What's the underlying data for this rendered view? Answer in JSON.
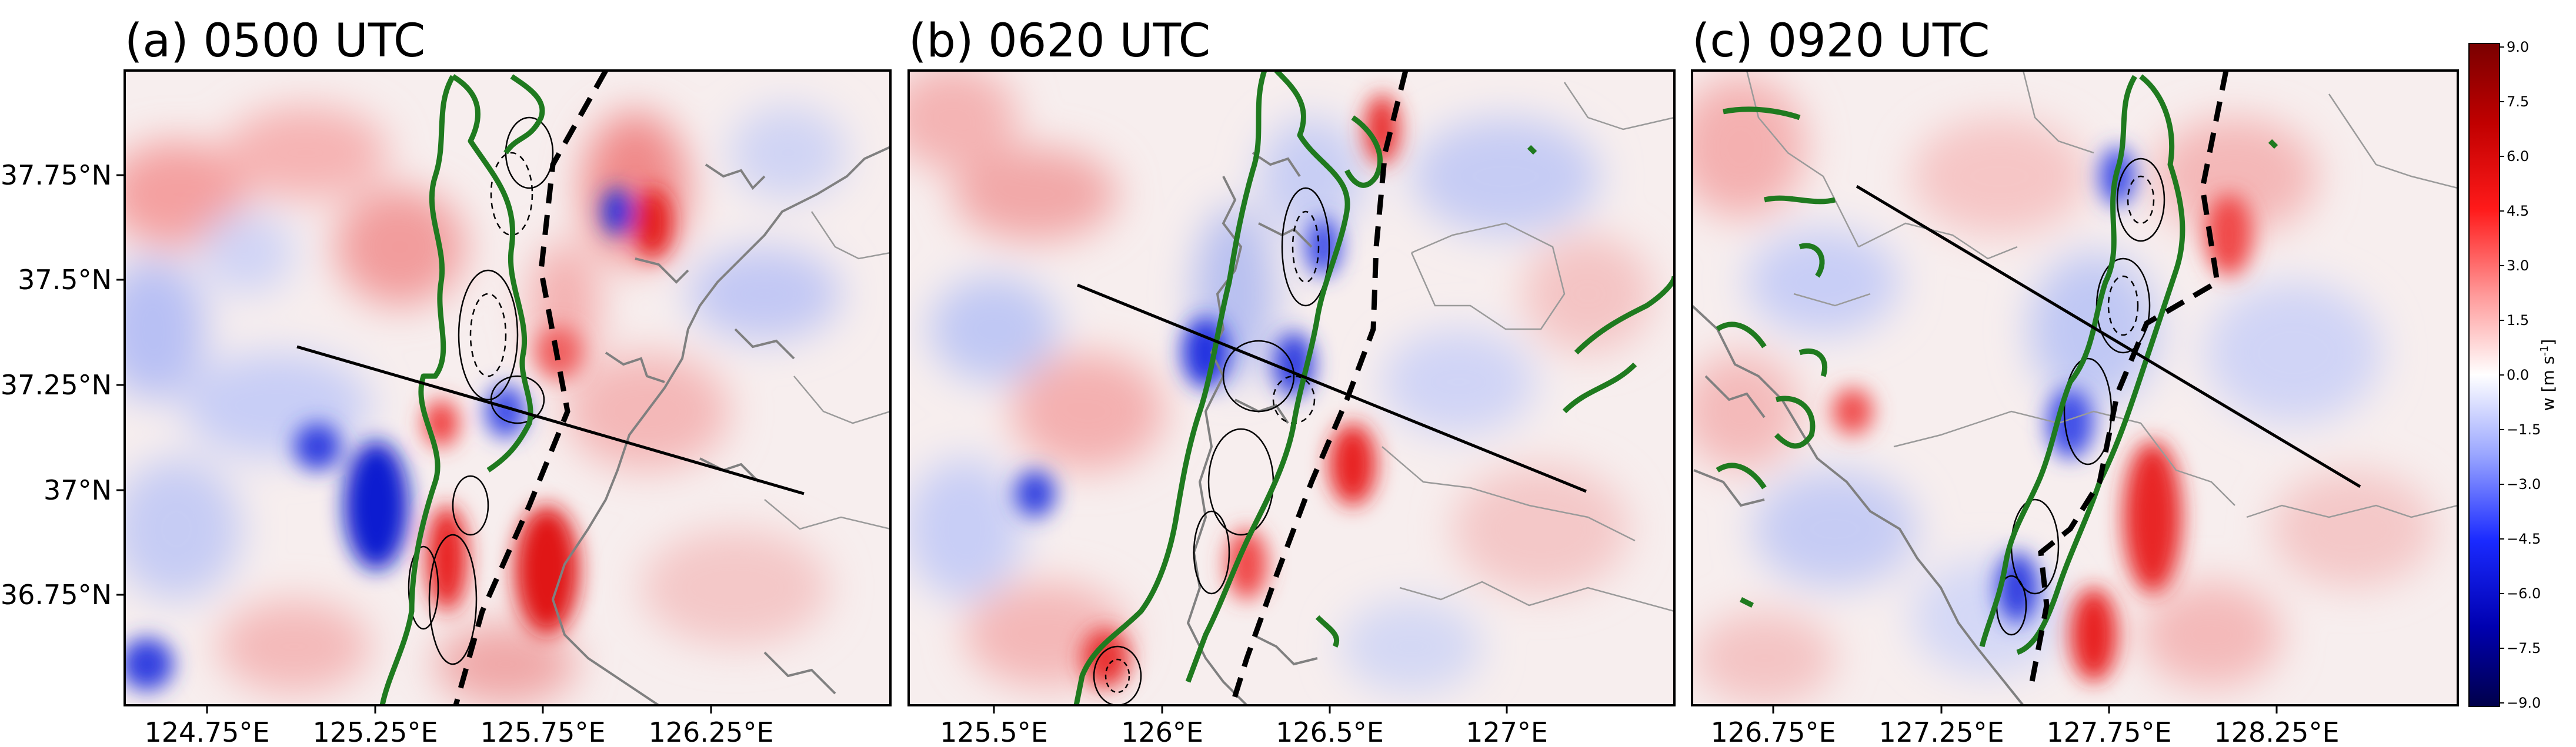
{
  "panels": [
    {
      "title": "(a) 0500 UTC",
      "xticks": [
        "124.75°E",
        "125.25°E",
        "125.75°E",
        "126.25°E"
      ],
      "yticks": [
        "37.75°N",
        "37.5°N",
        "37.25°N",
        "37°N",
        "36.75°N"
      ]
    },
    {
      "title": "(b) 0620 UTC",
      "xticks": [
        "125.5°E",
        "126°E",
        "126.5°E",
        "127°E"
      ]
    },
    {
      "title": "(c) 0920 UTC",
      "xticks": [
        "126.75°E",
        "127.25°E",
        "127.75°E",
        "128.25°E"
      ]
    }
  ],
  "colorbar": {
    "label": "w [m s",
    "label_exp": "-1",
    "label_end": "]",
    "ticks": [
      "9.0",
      "7.5",
      "6.0",
      "4.5",
      "3.0",
      "1.5",
      "0.0",
      "−1.5",
      "−3.0",
      "−4.5",
      "−6.0",
      "−7.5",
      "−9.0"
    ],
    "range": [
      -9.0,
      9.0
    ],
    "colormap": "seismic",
    "low_color": "#00004c",
    "mid_color": "#ffffff",
    "high_color": "#800000"
  },
  "colors": {
    "green_contour": "#1f7a1f",
    "coast": "#808080",
    "front": "#000000",
    "positive": "#e03030",
    "negative": "#3050d0"
  }
}
